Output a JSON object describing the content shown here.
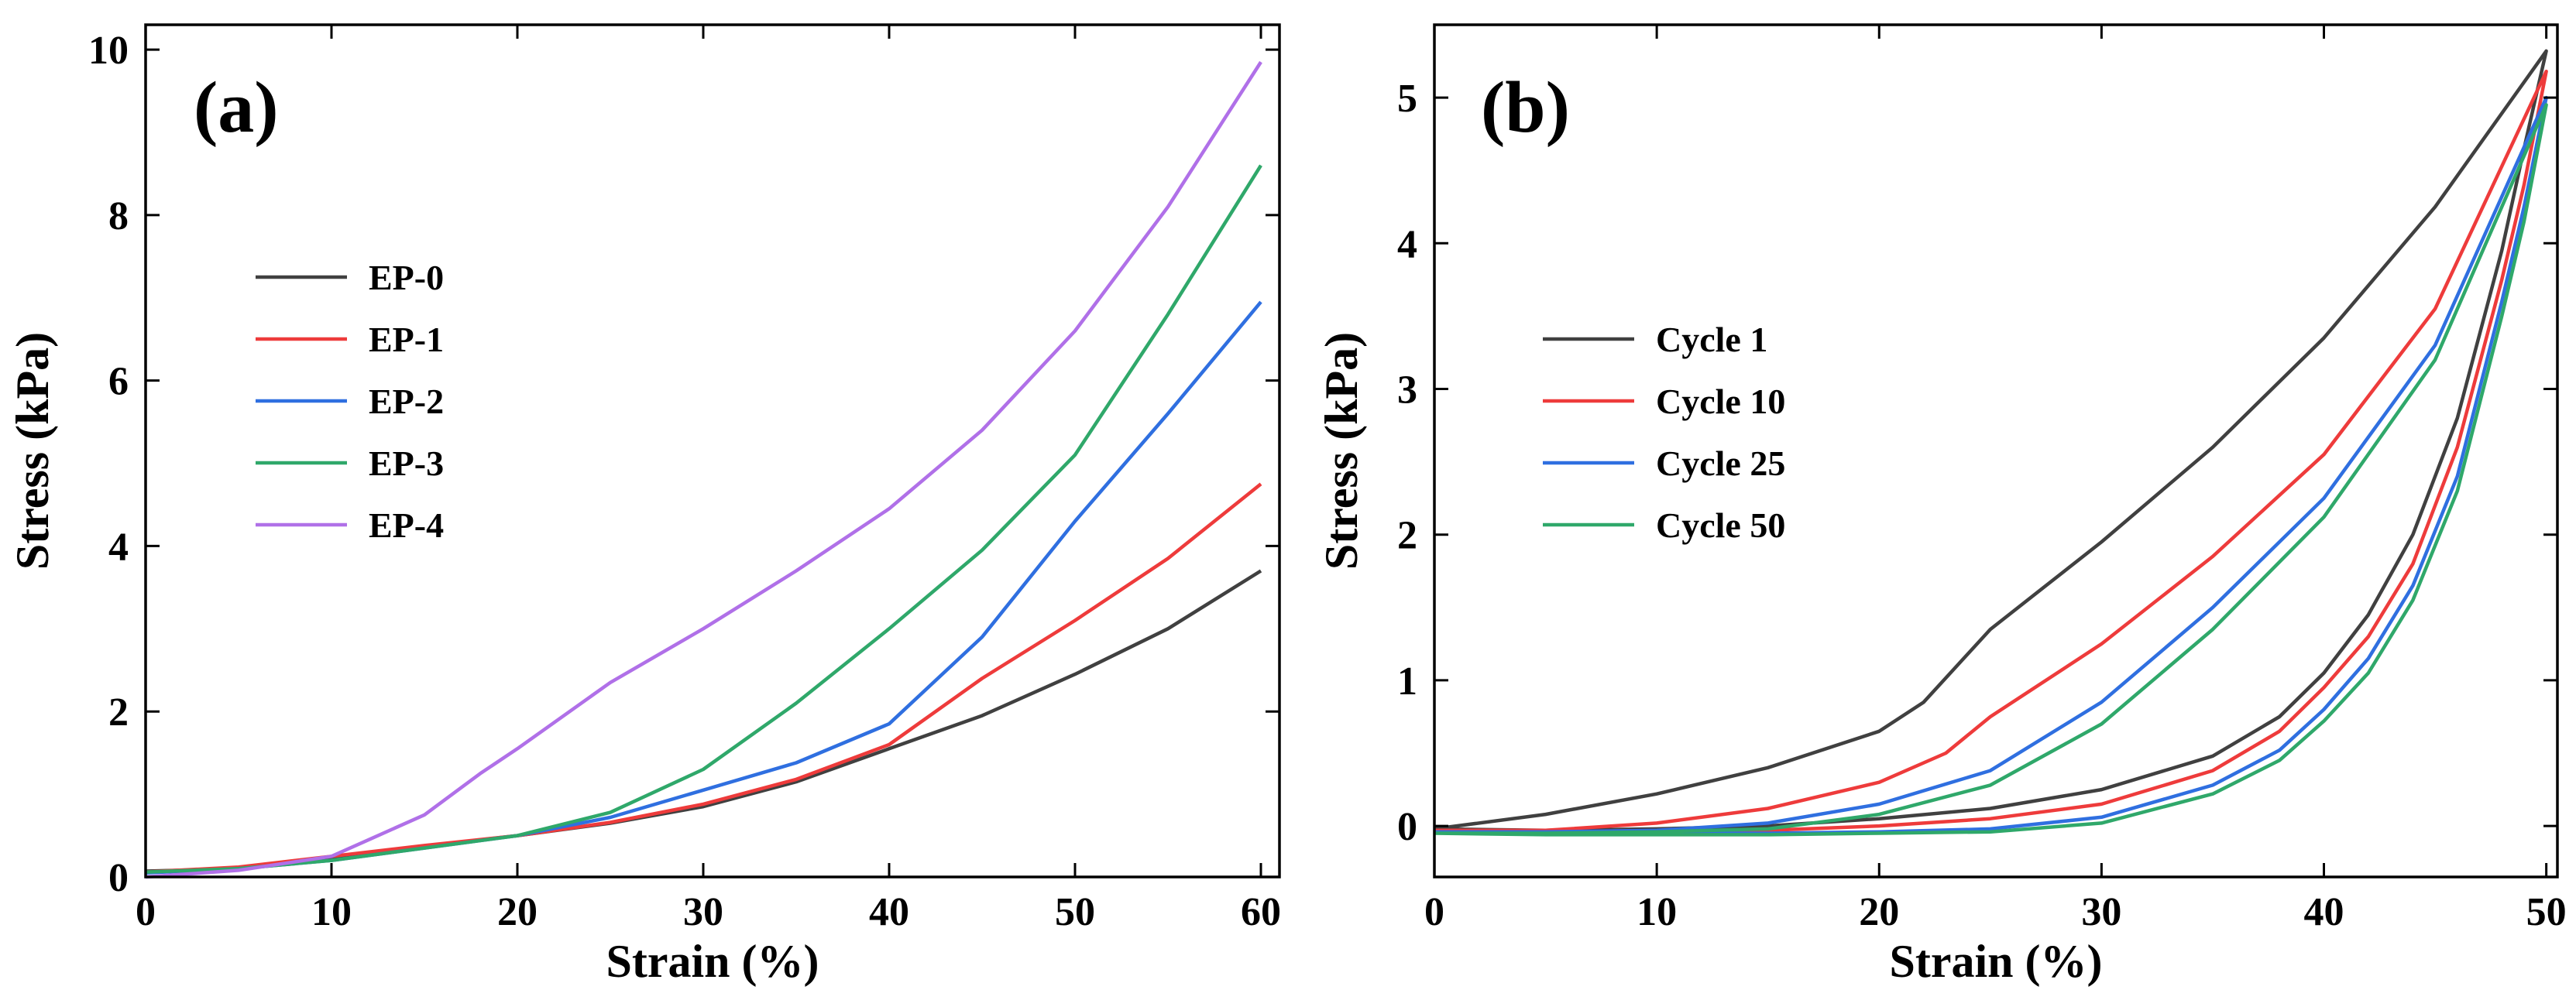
{
  "chart_data": [
    {
      "type": "line",
      "panel_label": "(a)",
      "xlabel": "Strain (%)",
      "ylabel": "Stress (kPa)",
      "xlim": [
        0,
        61
      ],
      "ylim": [
        0,
        10.3
      ],
      "xticks": [
        0,
        10,
        20,
        30,
        40,
        50,
        60
      ],
      "yticks": [
        0,
        2,
        4,
        6,
        8,
        10
      ],
      "legend_position": "center-left",
      "series": [
        {
          "name": "EP-0",
          "color": "#404040",
          "x": [
            0,
            5,
            10,
            15,
            20,
            25,
            30,
            35,
            40,
            45,
            50,
            55,
            60
          ],
          "y": [
            0.07,
            0.1,
            0.22,
            0.37,
            0.5,
            0.65,
            0.85,
            1.15,
            1.55,
            1.95,
            2.45,
            3.0,
            3.7
          ]
        },
        {
          "name": "EP-1",
          "color": "#ee3b3b",
          "x": [
            0,
            5,
            10,
            15,
            20,
            25,
            30,
            35,
            40,
            45,
            50,
            55,
            60
          ],
          "y": [
            0.06,
            0.12,
            0.25,
            0.38,
            0.5,
            0.66,
            0.88,
            1.18,
            1.6,
            2.4,
            3.1,
            3.85,
            4.75
          ]
        },
        {
          "name": "EP-2",
          "color": "#2f6fe0",
          "x": [
            0,
            5,
            10,
            15,
            20,
            25,
            30,
            35,
            40,
            45,
            50,
            55,
            60
          ],
          "y": [
            0.05,
            0.1,
            0.2,
            0.35,
            0.5,
            0.72,
            1.05,
            1.38,
            1.85,
            2.9,
            4.3,
            5.6,
            6.95
          ]
        },
        {
          "name": "EP-3",
          "color": "#2fa86a",
          "x": [
            0,
            5,
            10,
            15,
            20,
            25,
            30,
            35,
            40,
            45,
            50,
            55,
            60
          ],
          "y": [
            0.06,
            0.1,
            0.2,
            0.35,
            0.5,
            0.78,
            1.3,
            2.1,
            3.0,
            3.95,
            5.1,
            6.8,
            8.6
          ]
        },
        {
          "name": "EP-4",
          "color": "#b070e8",
          "x": [
            0,
            5,
            10,
            12,
            15,
            18,
            20,
            25,
            30,
            35,
            40,
            45,
            50,
            55,
            60
          ],
          "y": [
            0.0,
            0.08,
            0.25,
            0.45,
            0.75,
            1.25,
            1.55,
            2.35,
            3.0,
            3.7,
            4.45,
            5.4,
            6.6,
            8.1,
            9.85
          ]
        }
      ]
    },
    {
      "type": "line",
      "panel_label": "(b)",
      "xlabel": "Strain (%)",
      "ylabel": "Stress (kPa)",
      "xlim": [
        0,
        50.5
      ],
      "ylim": [
        -0.35,
        5.5
      ],
      "xticks": [
        0,
        10,
        20,
        30,
        40,
        50
      ],
      "yticks": [
        0,
        1,
        2,
        3,
        4,
        5
      ],
      "legend_position": "center-left",
      "series": [
        {
          "name": "Cycle 1",
          "color": "#404040",
          "x": [
            0,
            5,
            10,
            15,
            20,
            22,
            25,
            30,
            35,
            40,
            45,
            50,
            49,
            48,
            46,
            44,
            42,
            40,
            38,
            35,
            30,
            25,
            20,
            15,
            10,
            5,
            0
          ],
          "y": [
            -0.02,
            0.08,
            0.22,
            0.4,
            0.65,
            0.85,
            1.35,
            1.95,
            2.6,
            3.35,
            4.25,
            5.32,
            4.65,
            3.95,
            2.8,
            2.0,
            1.45,
            1.05,
            0.75,
            0.48,
            0.25,
            0.12,
            0.05,
            0.0,
            -0.02,
            -0.03,
            -0.02
          ]
        },
        {
          "name": "Cycle 10",
          "color": "#ee3b3b",
          "x": [
            0,
            5,
            10,
            15,
            20,
            23,
            25,
            30,
            35,
            40,
            45,
            50,
            49,
            48,
            46,
            44,
            42,
            40,
            38,
            35,
            30,
            25,
            20,
            15,
            10,
            5,
            0
          ],
          "y": [
            -0.03,
            -0.03,
            0.02,
            0.12,
            0.3,
            0.5,
            0.75,
            1.25,
            1.85,
            2.55,
            3.55,
            5.18,
            4.4,
            3.75,
            2.6,
            1.8,
            1.3,
            0.95,
            0.65,
            0.38,
            0.15,
            0.05,
            0.0,
            -0.03,
            -0.04,
            -0.04,
            -0.03
          ]
        },
        {
          "name": "Cycle 25",
          "color": "#2f6fe0",
          "x": [
            0,
            5,
            10,
            15,
            20,
            25,
            30,
            35,
            40,
            45,
            50,
            49,
            48,
            46,
            44,
            42,
            40,
            38,
            35,
            30,
            25,
            20,
            15,
            10,
            5,
            0
          ],
          "y": [
            -0.04,
            -0.04,
            -0.03,
            0.02,
            0.15,
            0.38,
            0.85,
            1.5,
            2.25,
            3.3,
            5.0,
            4.25,
            3.6,
            2.4,
            1.65,
            1.15,
            0.8,
            0.52,
            0.28,
            0.06,
            -0.02,
            -0.04,
            -0.05,
            -0.05,
            -0.05,
            -0.04
          ]
        },
        {
          "name": "Cycle 50",
          "color": "#2fa86a",
          "x": [
            0,
            5,
            10,
            15,
            20,
            25,
            30,
            35,
            40,
            45,
            50,
            49,
            48,
            46,
            44,
            42,
            40,
            38,
            35,
            30,
            25,
            20,
            15,
            10,
            5,
            0
          ],
          "y": [
            -0.05,
            -0.05,
            -0.04,
            -0.02,
            0.08,
            0.28,
            0.7,
            1.35,
            2.12,
            3.2,
            4.95,
            4.15,
            3.5,
            2.3,
            1.55,
            1.05,
            0.72,
            0.45,
            0.22,
            0.02,
            -0.04,
            -0.05,
            -0.06,
            -0.06,
            -0.06,
            -0.05
          ]
        }
      ]
    }
  ]
}
